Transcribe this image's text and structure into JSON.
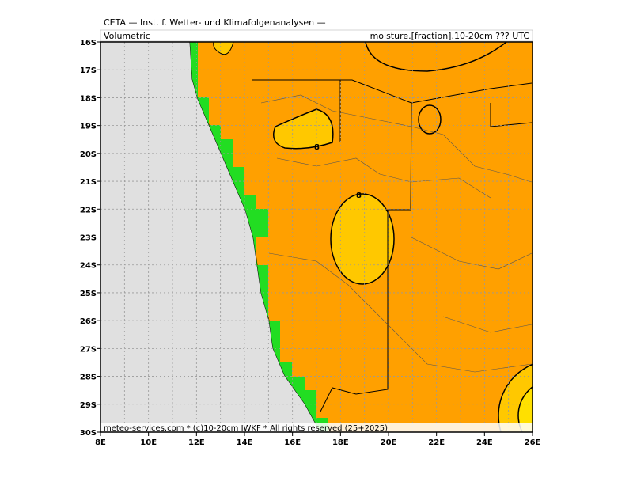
{
  "header": {
    "title": "CETA — Inst. f. Wetter- und Klimafolgenanalysen —",
    "left_label": "Volumetric",
    "right_label": "moisture.[fraction].10-20cm ??? UTC"
  },
  "footer": "meteo-services.com * (c)10-20cm IWKF * All rights reserved (25+2025)",
  "lat_labels": [
    "16S",
    "17S",
    "18S",
    "19S",
    "20S",
    "21S",
    "22S",
    "23S",
    "24S",
    "25S",
    "26S",
    "27S",
    "28S",
    "29S",
    "30S"
  ],
  "lon_labels": [
    "8E",
    "10E",
    "12E",
    "14E",
    "16E",
    "18E",
    "20E",
    "22E",
    "24E",
    "26E"
  ],
  "contour_labels": [
    "8",
    "8"
  ]
}
